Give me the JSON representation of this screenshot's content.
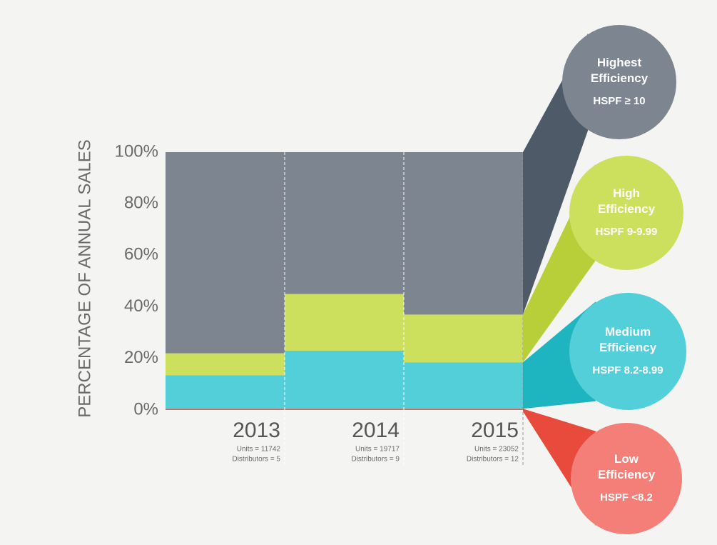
{
  "chart_data": {
    "type": "stacked_bar",
    "ylabel": "PERCENTAGE OF ANNUAL SALES",
    "categories": [
      "2013",
      "2014",
      "2015"
    ],
    "units": [
      "Units = 11742",
      "Units = 19717",
      "Units = 23052"
    ],
    "distributors": [
      "Distributors = 5",
      "Distributors = 9",
      "Distributors = 12"
    ],
    "ylim": [
      0,
      100
    ],
    "yticks": [
      {
        "value": 0,
        "label": "0%"
      },
      {
        "value": 20,
        "label": "20%"
      },
      {
        "value": 40,
        "label": "40%"
      },
      {
        "value": 60,
        "label": "60%"
      },
      {
        "value": 80,
        "label": "80%"
      },
      {
        "value": 100,
        "label": "100%"
      }
    ],
    "series": [
      {
        "name": "Low Efficiency",
        "range": "HSPF <8.2",
        "color": "#ef5a4f",
        "values": [
          0.5,
          0.5,
          0.5
        ]
      },
      {
        "name": "Medium Efficiency",
        "range": "HSPF 8.2-8.99",
        "color": "#52cfd8",
        "values": [
          13,
          22.5,
          18
        ]
      },
      {
        "name": "High Efficiency",
        "range": "HSPF 9-9.99",
        "color": "#cde05d",
        "values": [
          8.5,
          22,
          18.5
        ]
      },
      {
        "name": "Highest Efficiency",
        "range": "HSPF ≥ 10",
        "color": "#7c8590",
        "values": [
          78,
          55,
          63
        ]
      }
    ]
  }
}
